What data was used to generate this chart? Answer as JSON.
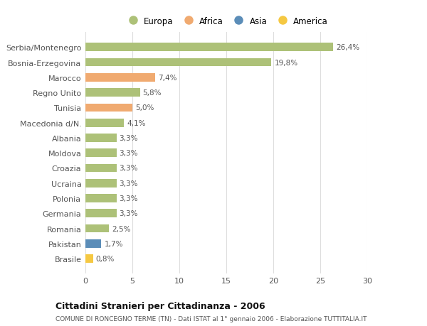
{
  "categories": [
    "Serbia/Montenegro",
    "Bosnia-Erzegovina",
    "Marocco",
    "Regno Unito",
    "Tunisia",
    "Macedonia d/N.",
    "Albania",
    "Moldova",
    "Croazia",
    "Ucraina",
    "Polonia",
    "Germania",
    "Romania",
    "Pakistan",
    "Brasile"
  ],
  "values": [
    26.4,
    19.8,
    7.4,
    5.8,
    5.0,
    4.1,
    3.3,
    3.3,
    3.3,
    3.3,
    3.3,
    3.3,
    2.5,
    1.7,
    0.8
  ],
  "labels": [
    "26,4%",
    "19,8%",
    "7,4%",
    "5,8%",
    "5,0%",
    "4,1%",
    "3,3%",
    "3,3%",
    "3,3%",
    "3,3%",
    "3,3%",
    "3,3%",
    "2,5%",
    "1,7%",
    "0,8%"
  ],
  "colors": [
    "#adc178",
    "#adc178",
    "#f0aa70",
    "#adc178",
    "#f0aa70",
    "#adc178",
    "#adc178",
    "#adc178",
    "#adc178",
    "#adc178",
    "#adc178",
    "#adc178",
    "#adc178",
    "#5b8db8",
    "#f5c842"
  ],
  "legend_labels": [
    "Europa",
    "Africa",
    "Asia",
    "America"
  ],
  "legend_colors": [
    "#adc178",
    "#f0aa70",
    "#5b8db8",
    "#f5c842"
  ],
  "title": "Cittadini Stranieri per Cittadinanza - 2006",
  "subtitle": "COMUNE DI RONCEGNO TERME (TN) - Dati ISTAT al 1° gennaio 2006 - Elaborazione TUTTITALIA.IT",
  "xlim": [
    0,
    30
  ],
  "xticks": [
    0,
    5,
    10,
    15,
    20,
    25,
    30
  ],
  "background_color": "#ffffff",
  "grid_color": "#dddddd"
}
